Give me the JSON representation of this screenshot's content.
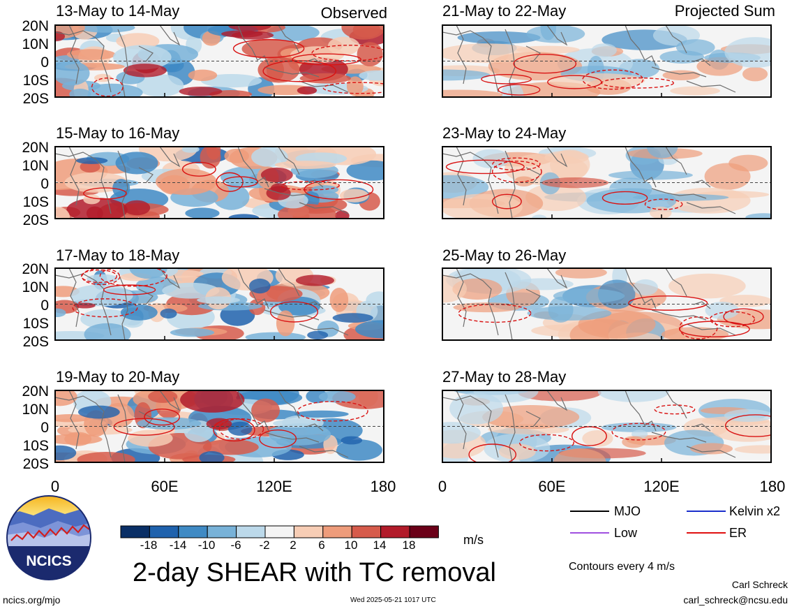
{
  "panels": [
    {
      "title": "13-May to 14-May",
      "tag": "Observed"
    },
    {
      "title": "21-May to 22-May",
      "tag": "Projected Sum"
    },
    {
      "title": "15-May to 16-May"
    },
    {
      "title": "23-May to 24-May"
    },
    {
      "title": "17-May to 18-May"
    },
    {
      "title": "25-May to 26-May"
    },
    {
      "title": "19-May to 20-May"
    },
    {
      "title": "27-May to 28-May"
    }
  ],
  "lat_labels": [
    "20N",
    "10N",
    "0",
    "10S",
    "20S"
  ],
  "lon_labels": [
    "0",
    "60E",
    "120E",
    "180"
  ],
  "main_title": "2-day SHEAR with TC removal",
  "colorbar": {
    "levels": [
      "-18",
      "-14",
      "-10",
      "-6",
      "-2",
      "2",
      "6",
      "10",
      "14",
      "18"
    ],
    "colors": [
      "#0a2f66",
      "#1f62ad",
      "#3f8ac4",
      "#78b2d8",
      "#bcd9ea",
      "#f4f4f4",
      "#f7cdb5",
      "#ee9c7b",
      "#d65b4b",
      "#b21b2a",
      "#6b0018"
    ],
    "units": "m/s"
  },
  "legend": {
    "items": [
      {
        "label": "MJO",
        "color": "#000000"
      },
      {
        "label": "Kelvin x2",
        "color": "#1a2ecc"
      },
      {
        "label": "Low",
        "color": "#a050e0"
      },
      {
        "label": "ER",
        "color": "#e01010"
      }
    ],
    "note": "Contours every 4 m/s"
  },
  "footer": {
    "site": "ncics.org/mjo",
    "timestamp": "Wed 2025-05-21 1017 UTC",
    "author": "Carl Schreck",
    "email": "carl_schreck@ncsu.edu"
  },
  "logo_text": "NCICS"
}
